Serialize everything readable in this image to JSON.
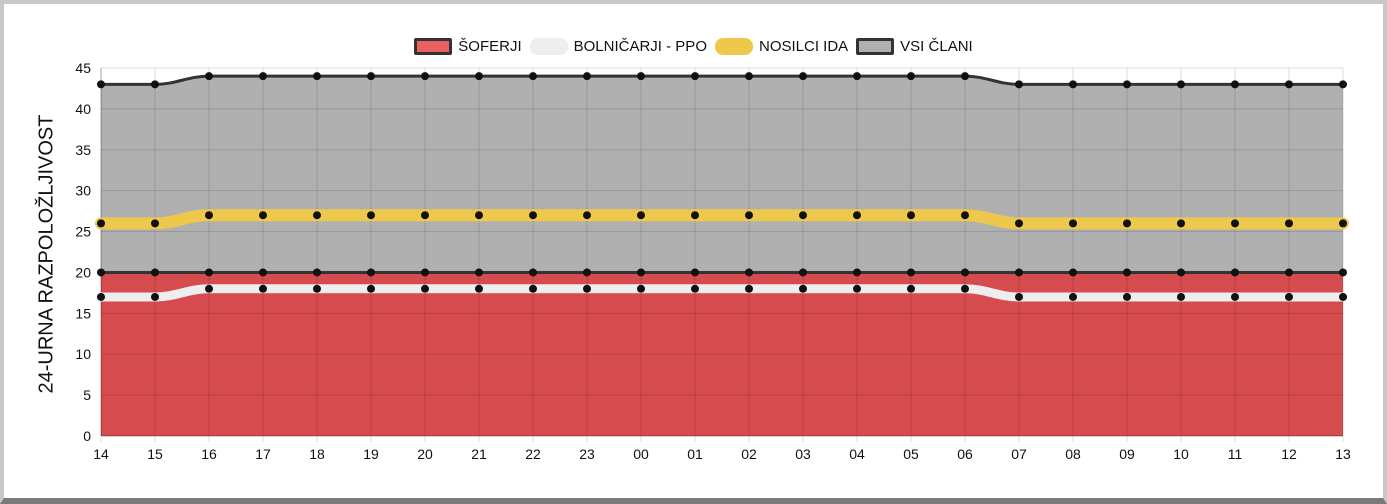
{
  "chart_data": {
    "type": "area",
    "title": "",
    "xlabel": "",
    "ylabel": "24-URNA RAZPOLOŽLJIVOST",
    "ylim": [
      0,
      45
    ],
    "yticks": [
      0,
      5,
      10,
      15,
      20,
      25,
      30,
      35,
      40,
      45
    ],
    "grid": true,
    "legend_position": "top-center",
    "categories": [
      "14",
      "15",
      "16",
      "17",
      "18",
      "19",
      "20",
      "21",
      "22",
      "23",
      "00",
      "01",
      "02",
      "03",
      "04",
      "05",
      "06",
      "07",
      "08",
      "09",
      "10",
      "11",
      "12",
      "13"
    ],
    "series": [
      {
        "name": "ŠOFERJI",
        "color": "#d64b4e",
        "legend_color": "#e8605f",
        "values": [
          20,
          20,
          20,
          20,
          20,
          20,
          20,
          20,
          20,
          20,
          20,
          20,
          20,
          20,
          20,
          20,
          20,
          20,
          20,
          20,
          20,
          20,
          20,
          20
        ]
      },
      {
        "name": "BOLNIČARJI - PPO",
        "color": "#eeeeee",
        "legend_color": "#eeeeee",
        "values": [
          17,
          17,
          18,
          18,
          18,
          18,
          18,
          18,
          18,
          18,
          18,
          18,
          18,
          18,
          18,
          18,
          18,
          17,
          17,
          17,
          17,
          17,
          17,
          17
        ]
      },
      {
        "name": "NOSILCI IDA",
        "color": "#eec84a",
        "legend_color": "#eec84a",
        "values": [
          26,
          26,
          27,
          27,
          27,
          27,
          27,
          27,
          27,
          27,
          27,
          27,
          27,
          27,
          27,
          27,
          27,
          26,
          26,
          26,
          26,
          26,
          26,
          26
        ]
      },
      {
        "name": "VSI ČLANI",
        "color": "#b0b0b0",
        "legend_color": "#b0b0b0",
        "values": [
          43,
          43,
          44,
          44,
          44,
          44,
          44,
          44,
          44,
          44,
          44,
          44,
          44,
          44,
          44,
          44,
          44,
          43,
          43,
          43,
          43,
          43,
          43,
          43
        ]
      }
    ]
  }
}
